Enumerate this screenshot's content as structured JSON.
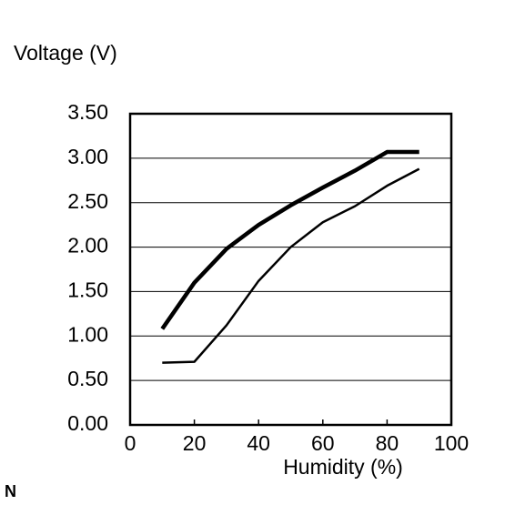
{
  "chart_data": {
    "type": "line",
    "y_label": "Voltage (V)",
    "x_label": "Humidity (%)",
    "annotation": "N",
    "x": [
      10,
      20,
      30,
      40,
      50,
      60,
      70,
      80,
      90
    ],
    "series": [
      {
        "color": "#000000",
        "line_width": 4.5,
        "values": [
          1.08,
          1.6,
          1.98,
          2.25,
          2.47,
          2.67,
          2.86,
          3.07,
          3.07
        ]
      },
      {
        "color": "#000000",
        "line_width": 2.5,
        "values": [
          0.7,
          0.71,
          1.12,
          1.62,
          2.0,
          2.28,
          2.46,
          2.69,
          2.88
        ]
      }
    ],
    "xlim": [
      0,
      100
    ],
    "xticks": [
      0,
      20,
      40,
      60,
      80,
      100
    ],
    "ylim": [
      0,
      3.5
    ],
    "yticks": [
      {
        "value": 0,
        "label": "0.00"
      },
      {
        "value": 0.5,
        "label": "0.50"
      },
      {
        "value": 1,
        "label": "1.00"
      },
      {
        "value": 1.5,
        "label": "1.50"
      },
      {
        "value": 2,
        "label": "2.00"
      },
      {
        "value": 2.5,
        "label": "2.50"
      },
      {
        "value": 3,
        "label": "3.00"
      },
      {
        "value": 3.5,
        "label": "3.50"
      }
    ],
    "grid": true
  }
}
